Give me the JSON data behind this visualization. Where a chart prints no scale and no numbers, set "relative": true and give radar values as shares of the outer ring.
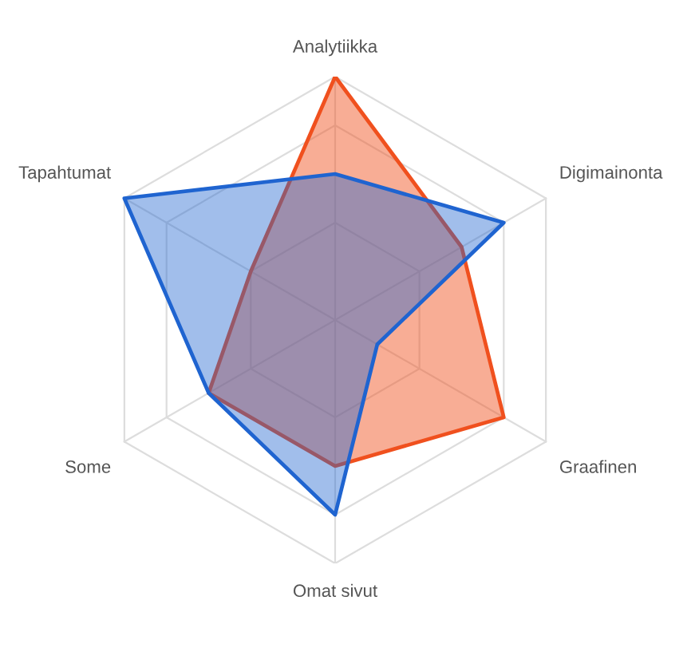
{
  "chart_data": {
    "type": "radar",
    "relative": true,
    "grid": true,
    "categories": [
      "Analytiikka",
      "Digimainonta",
      "Graafinen",
      "Omat sivut",
      "Some",
      "Tapahtumat"
    ],
    "series": [
      {
        "color": "#f0501e",
        "values": [
          1,
          0.6,
          0.8,
          0.6,
          0.6,
          0.4
        ]
      },
      {
        "color": "#1f64d0",
        "values": [
          0.6,
          0.8,
          0.2,
          0.8,
          0.6,
          1
        ]
      }
    ]
  }
}
